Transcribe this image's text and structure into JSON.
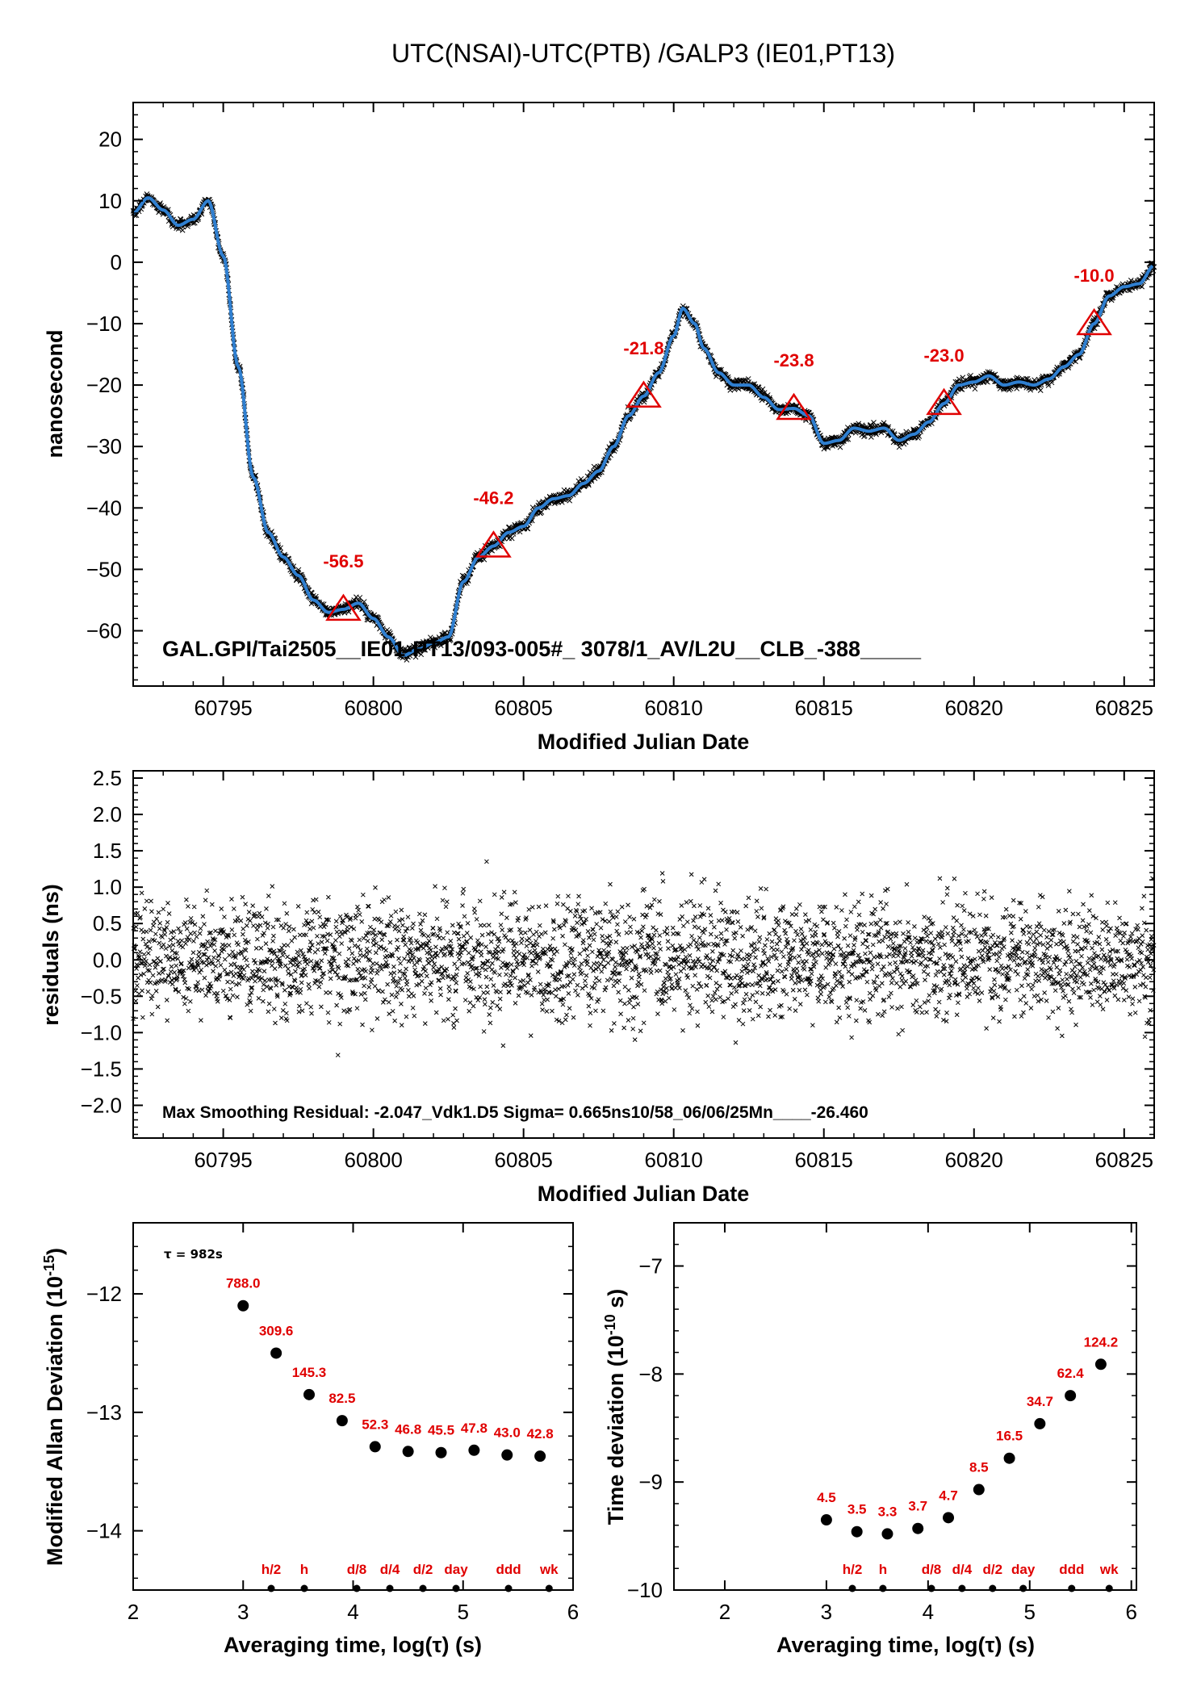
{
  "colors": {
    "fit": "#2f7fd0",
    "marker": "#e00000",
    "points": "#000000",
    "frame": "#000000"
  },
  "chart_data": [
    {
      "id": "timeseries",
      "type": "line",
      "title": "UTC(NSAI)-UTC(PTB)  /GALP3  (IE01,PT13)",
      "xlabel": "Modified Julian Date",
      "ylabel": "nanosecond",
      "xlim": [
        60792,
        60826
      ],
      "ylim": [
        -69,
        26
      ],
      "xticks": [
        60795,
        60800,
        60805,
        60810,
        60815,
        60820,
        60825
      ],
      "yticks": [
        20,
        10,
        0,
        -10,
        -20,
        -30,
        -40,
        -50,
        -60
      ],
      "grid": false,
      "series": [
        {
          "style": "smooth-line",
          "x": [
            60792.0,
            60792.5,
            60793.0,
            60793.5,
            60794.0,
            60794.5,
            60795.0,
            60795.5,
            60796.0,
            60796.5,
            60797.0,
            60797.5,
            60798.0,
            60798.5,
            60799.0,
            60799.5,
            60800.0,
            60800.5,
            60801.0,
            60801.5,
            60802.0,
            60802.5,
            60803.0,
            60803.5,
            60804.0,
            60804.5,
            60805.0,
            60805.5,
            60806.0,
            60806.5,
            60807.0,
            60807.5,
            60808.0,
            60808.5,
            60809.0,
            60809.5,
            60810.0,
            60810.3,
            60810.7,
            60811.0,
            60811.5,
            60812.0,
            60812.5,
            60813.0,
            60813.5,
            60814.0,
            60814.5,
            60815.0,
            60815.5,
            60816.0,
            60816.5,
            60817.0,
            60817.5,
            60818.0,
            60818.5,
            60819.0,
            60819.5,
            60820.0,
            60820.5,
            60821.0,
            60821.5,
            60822.0,
            60822.5,
            60823.0,
            60823.5,
            60824.0,
            60824.5,
            60825.0,
            60825.5,
            60826.0
          ],
          "y": [
            8,
            10.5,
            8.5,
            6,
            7,
            10,
            1,
            -17,
            -35,
            -44,
            -48,
            -51,
            -55,
            -57,
            -56.5,
            -55.5,
            -58,
            -61,
            -64,
            -63,
            -62,
            -61,
            -52,
            -48,
            -46.2,
            -44,
            -43,
            -40,
            -38.5,
            -38,
            -36,
            -34,
            -30,
            -25,
            -21.8,
            -18,
            -12,
            -7.5,
            -10,
            -14,
            -18,
            -20,
            -20,
            -22,
            -24,
            -23.8,
            -25,
            -29.5,
            -29,
            -27,
            -27.5,
            -27,
            -29,
            -28,
            -26,
            -23,
            -20,
            -19.5,
            -18.5,
            -20,
            -19.5,
            -20,
            -19,
            -17,
            -15,
            -10,
            -5.5,
            -4,
            -3.5,
            -0.5
          ]
        }
      ],
      "markers": [
        {
          "x": 60799,
          "y": -56.5,
          "label": "-56.5"
        },
        {
          "x": 60804,
          "y": -46.2,
          "label": "-46.2"
        },
        {
          "x": 60809,
          "y": -21.8,
          "label": "-21.8"
        },
        {
          "x": 60814,
          "y": -23.8,
          "label": "-23.8"
        },
        {
          "x": 60819,
          "y": -23.0,
          "label": "-23.0"
        },
        {
          "x": 60824,
          "y": -10.0,
          "label": "-10.0"
        }
      ],
      "annotation": "GAL.GPI/Tai2505__IE01-PT13/093-005#_  3078/1_AV/L2U__CLB_-388_____"
    },
    {
      "id": "residuals",
      "type": "scatter",
      "xlabel": "Modified Julian Date",
      "ylabel": "residuals (ns)",
      "xlim": [
        60792,
        60826
      ],
      "ylim": [
        -2.45,
        2.6
      ],
      "xticks": [
        60795,
        60800,
        60805,
        60810,
        60815,
        60820,
        60825
      ],
      "yticks": [
        2.5,
        2.0,
        1.5,
        1.0,
        0.5,
        0.0,
        -0.5,
        -1.0,
        -1.5,
        -2.0
      ],
      "ytick_labels": [
        "2.5",
        "2.0",
        "1.5",
        "1.0",
        "0.5",
        "0.0",
        "-0.5",
        "-1.0",
        "-1.5",
        "-2.0"
      ],
      "grid": false,
      "sigma": 0.665,
      "max_residual": -2.047,
      "annotation": "Max Smoothing Residual: -2.047_Vdk1.D5  Sigma= 0.665ns10/58_06/06/25Mn____-26.460"
    },
    {
      "id": "mdev",
      "type": "scatter",
      "xlabel": "Averaging time, log(τ) (s)",
      "ylabel": "Modified Allan Deviation (10",
      "ylabel_exp": "-15",
      "ylabel_end": ")",
      "xlim": [
        2,
        6
      ],
      "ylim": [
        -14.5,
        -11.4
      ],
      "xticks": [
        2,
        3,
        4,
        5,
        6
      ],
      "yticks": [
        -12,
        -13,
        -14
      ],
      "tau_note": "τ = 982s",
      "points": [
        {
          "x": 3.0,
          "y": -12.1,
          "label": "788.0"
        },
        {
          "x": 3.3,
          "y": -12.5,
          "label": "309.6"
        },
        {
          "x": 3.6,
          "y": -12.85,
          "label": "145.3"
        },
        {
          "x": 3.9,
          "y": -13.07,
          "label": "82.5"
        },
        {
          "x": 4.2,
          "y": -13.29,
          "label": "52.3"
        },
        {
          "x": 4.5,
          "y": -13.33,
          "label": "46.8"
        },
        {
          "x": 4.8,
          "y": -13.34,
          "label": "45.5"
        },
        {
          "x": 5.1,
          "y": -13.32,
          "label": "47.8"
        },
        {
          "x": 5.4,
          "y": -13.36,
          "label": "43.0"
        },
        {
          "x": 5.7,
          "y": -13.37,
          "label": "42.8"
        }
      ],
      "period_marks": [
        {
          "x": 3.255,
          "label": "h/2"
        },
        {
          "x": 3.556,
          "label": "h"
        },
        {
          "x": 4.033,
          "label": "d/8"
        },
        {
          "x": 4.334,
          "label": "d/4"
        },
        {
          "x": 4.635,
          "label": "d/2"
        },
        {
          "x": 4.936,
          "label": "day"
        },
        {
          "x": 5.413,
          "label": "ddd"
        },
        {
          "x": 5.782,
          "label": "wk"
        }
      ]
    },
    {
      "id": "tdev",
      "type": "scatter",
      "xlabel": "Averaging time, log(τ) (s)",
      "ylabel": "Time deviation (10",
      "ylabel_exp": "-10",
      "ylabel_end": " s)",
      "xlim": [
        1.5,
        6.05
      ],
      "ylim": [
        -10,
        -6.6
      ],
      "xticks": [
        2,
        3,
        4,
        5,
        6
      ],
      "yticks": [
        -7,
        -8,
        -9,
        -10
      ],
      "points": [
        {
          "x": 3.0,
          "y": -9.35,
          "label": "4.5"
        },
        {
          "x": 3.3,
          "y": -9.46,
          "label": "3.5"
        },
        {
          "x": 3.6,
          "y": -9.48,
          "label": "3.3"
        },
        {
          "x": 3.9,
          "y": -9.43,
          "label": "3.7"
        },
        {
          "x": 4.2,
          "y": -9.33,
          "label": "4.7"
        },
        {
          "x": 4.5,
          "y": -9.07,
          "label": "8.5"
        },
        {
          "x": 4.8,
          "y": -8.78,
          "label": "16.5"
        },
        {
          "x": 5.1,
          "y": -8.46,
          "label": "34.7"
        },
        {
          "x": 5.4,
          "y": -8.2,
          "label": "62.4"
        },
        {
          "x": 5.7,
          "y": -7.91,
          "label": "124.2"
        }
      ],
      "period_marks": [
        {
          "x": 3.255,
          "label": "h/2"
        },
        {
          "x": 3.556,
          "label": "h"
        },
        {
          "x": 4.033,
          "label": "d/8"
        },
        {
          "x": 4.334,
          "label": "d/4"
        },
        {
          "x": 4.635,
          "label": "d/2"
        },
        {
          "x": 4.936,
          "label": "day"
        },
        {
          "x": 5.413,
          "label": "ddd"
        },
        {
          "x": 5.782,
          "label": "wk"
        }
      ]
    }
  ]
}
